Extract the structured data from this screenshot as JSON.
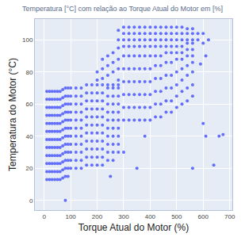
{
  "chart_data": {
    "type": "scatter",
    "title": "Temperatura [°C] com relação ao Torque Atual do Motor em [%]",
    "x_label": "Torque Atual do Motor (%)",
    "y_label": "Temperatura do Motor (°C)",
    "color": "#636efa",
    "marker": "circle",
    "grid": true,
    "xlim": [
      -35,
      710
    ],
    "ylim": [
      -6,
      113
    ],
    "xticks": [
      0,
      100,
      200,
      300,
      400,
      500,
      600,
      700
    ],
    "yticks": [
      0,
      20,
      40,
      60,
      80,
      100
    ],
    "x": [
      10,
      10,
      10,
      10,
      10,
      10,
      10,
      10,
      10,
      10,
      10,
      10,
      20,
      20,
      20,
      20,
      20,
      20,
      20,
      20,
      20,
      20,
      20,
      20,
      30,
      30,
      30,
      30,
      30,
      30,
      30,
      30,
      30,
      30,
      30,
      30,
      40,
      40,
      40,
      40,
      40,
      40,
      40,
      40,
      40,
      40,
      40,
      40,
      50,
      50,
      50,
      50,
      50,
      50,
      50,
      50,
      50,
      50,
      50,
      50,
      60,
      60,
      60,
      60,
      60,
      60,
      60,
      60,
      60,
      60,
      60,
      60,
      70,
      70,
      70,
      70,
      70,
      70,
      70,
      70,
      70,
      70,
      70,
      70,
      80,
      80,
      80,
      80,
      80,
      80,
      80,
      80,
      80,
      80,
      80,
      80,
      90,
      90,
      90,
      90,
      90,
      90,
      90,
      90,
      90,
      90,
      90,
      90,
      100,
      100,
      100,
      100,
      100,
      100,
      100,
      100,
      100,
      100,
      100,
      120,
      120,
      120,
      120,
      120,
      120,
      120,
      120,
      120,
      120,
      120,
      140,
      140,
      140,
      140,
      140,
      140,
      140,
      140,
      140,
      140,
      140,
      160,
      160,
      160,
      160,
      160,
      160,
      160,
      160,
      160,
      160,
      160,
      180,
      180,
      180,
      180,
      180,
      180,
      180,
      180,
      180,
      180,
      180,
      200,
      200,
      200,
      200,
      200,
      200,
      200,
      200,
      200,
      200,
      200,
      220,
      220,
      220,
      220,
      220,
      220,
      220,
      220,
      220,
      220,
      220,
      240,
      240,
      240,
      240,
      240,
      240,
      240,
      240,
      240,
      240,
      240,
      260,
      260,
      260,
      260,
      260,
      260,
      260,
      260,
      260,
      260,
      260,
      280,
      280,
      280,
      280,
      280,
      280,
      280,
      280,
      280,
      280,
      280,
      200,
      200,
      220,
      220,
      220,
      240,
      240,
      240,
      260,
      260,
      260,
      280,
      280,
      280,
      280,
      280,
      300,
      300,
      300,
      300,
      300,
      300,
      300,
      300,
      300,
      300,
      320,
      320,
      320,
      320,
      320,
      320,
      320,
      320,
      320,
      320,
      340,
      340,
      340,
      340,
      340,
      340,
      340,
      340,
      340,
      340,
      360,
      360,
      360,
      360,
      360,
      360,
      360,
      360,
      360,
      360,
      380,
      380,
      380,
      380,
      380,
      380,
      380,
      380,
      380,
      380,
      400,
      400,
      400,
      400,
      400,
      400,
      400,
      400,
      400,
      400,
      420,
      420,
      420,
      420,
      420,
      420,
      420,
      420,
      420,
      420,
      440,
      440,
      440,
      440,
      440,
      440,
      440,
      440,
      440,
      440,
      460,
      460,
      460,
      460,
      460,
      460,
      460,
      460,
      460,
      460,
      480,
      480,
      480,
      480,
      480,
      480,
      480,
      480,
      480,
      480,
      500,
      500,
      500,
      500,
      500,
      500,
      500,
      500,
      500,
      500,
      520,
      520,
      520,
      520,
      520,
      520,
      520,
      520,
      520,
      520,
      540,
      540,
      540,
      540,
      540,
      540,
      540,
      540,
      540,
      540,
      560,
      560,
      560,
      560,
      560,
      560,
      560,
      560,
      560,
      560,
      580,
      580,
      600,
      600,
      620,
      80,
      560,
      640,
      610,
      660,
      675,
      600,
      610,
      590,
      300,
      350,
      380,
      250
    ],
    "values": [
      13,
      18,
      23,
      28,
      33,
      38,
      43,
      48,
      53,
      58,
      63,
      68,
      13,
      18,
      23,
      28,
      33,
      38,
      43,
      48,
      53,
      58,
      63,
      68,
      13,
      18,
      23,
      28,
      33,
      38,
      43,
      48,
      53,
      58,
      63,
      68,
      13,
      18,
      23,
      28,
      33,
      38,
      43,
      48,
      53,
      58,
      63,
      68,
      13,
      18,
      23,
      28,
      33,
      38,
      43,
      48,
      53,
      58,
      63,
      68,
      13,
      18,
      23,
      28,
      33,
      38,
      43,
      48,
      53,
      58,
      63,
      68,
      14,
      19,
      24,
      29,
      34,
      39,
      44,
      49,
      54,
      59,
      64,
      69,
      15,
      20,
      25,
      30,
      35,
      40,
      45,
      50,
      55,
      60,
      65,
      70,
      15,
      20,
      25,
      30,
      35,
      40,
      45,
      50,
      55,
      60,
      65,
      70,
      20,
      25,
      30,
      35,
      40,
      45,
      50,
      55,
      60,
      65,
      70,
      20,
      25,
      30,
      35,
      40,
      45,
      50,
      55,
      60,
      65,
      70,
      20,
      25,
      30,
      35,
      40,
      45,
      50,
      55,
      60,
      65,
      70,
      22,
      27,
      32,
      37,
      42,
      47,
      52,
      57,
      62,
      67,
      72,
      22,
      27,
      32,
      37,
      42,
      47,
      52,
      57,
      62,
      67,
      72,
      22,
      27,
      32,
      37,
      42,
      47,
      52,
      57,
      62,
      67,
      72,
      22,
      27,
      32,
      37,
      42,
      47,
      52,
      57,
      62,
      67,
      72,
      25,
      30,
      35,
      40,
      45,
      50,
      55,
      60,
      65,
      70,
      72,
      25,
      30,
      35,
      40,
      45,
      50,
      55,
      60,
      65,
      70,
      72,
      30,
      35,
      40,
      45,
      50,
      55,
      60,
      65,
      70,
      72,
      75,
      75,
      80,
      76,
      82,
      88,
      78,
      84,
      90,
      80,
      86,
      92,
      82,
      88,
      95,
      100,
      106,
      50,
      58,
      66,
      74,
      82,
      90,
      96,
      100,
      104,
      108,
      50,
      58,
      66,
      74,
      82,
      90,
      96,
      100,
      104,
      108,
      50,
      58,
      66,
      74,
      82,
      90,
      96,
      100,
      104,
      108,
      50,
      58,
      66,
      74,
      82,
      90,
      96,
      100,
      104,
      108,
      50,
      58,
      66,
      74,
      82,
      90,
      96,
      100,
      104,
      108,
      50,
      58,
      66,
      74,
      82,
      90,
      96,
      100,
      104,
      108,
      52,
      60,
      68,
      76,
      84,
      90,
      96,
      100,
      104,
      108,
      52,
      60,
      68,
      76,
      84,
      90,
      96,
      100,
      104,
      108,
      55,
      62,
      70,
      78,
      86,
      92,
      96,
      100,
      104,
      108,
      55,
      62,
      70,
      78,
      86,
      92,
      96,
      100,
      104,
      108,
      58,
      65,
      72,
      80,
      88,
      92,
      96,
      100,
      104,
      108,
      60,
      68,
      75,
      82,
      88,
      92,
      96,
      100,
      104,
      108,
      62,
      70,
      78,
      84,
      90,
      94,
      98,
      100,
      104,
      107,
      65,
      72,
      80,
      86,
      90,
      94,
      98,
      100,
      104,
      107,
      100,
      104,
      98,
      104,
      100,
      0,
      20,
      22,
      40,
      40,
      41,
      48,
      90,
      85,
      30,
      20,
      40,
      15
    ]
  }
}
